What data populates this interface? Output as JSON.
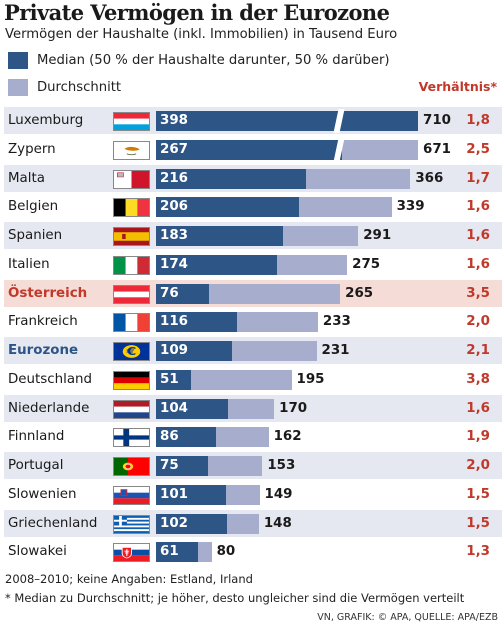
{
  "title": "Private Vermögen in der Eurozone",
  "subtitle": "Vermögen der Haushalte (inkl. Immobilien) in Tausend Euro",
  "colors": {
    "median": "#2d5586",
    "average": "#a7adcc",
    "ratio": "#c0392b",
    "row_light": "#e6e8f1",
    "row_white": "#ffffff",
    "row_highlight": "#f5dcd6",
    "eurozone_text": "#2d5586"
  },
  "legend": {
    "median": "Median (50 % der Haushalte darunter, 50 % darüber)",
    "average": "Durchschnitt",
    "ratio": "Verhältnis*"
  },
  "chart_data": {
    "type": "bar",
    "categories": [
      "Luxemburg",
      "Zypern",
      "Malta",
      "Belgien",
      "Spanien",
      "Italien",
      "Österreich",
      "Frankreich",
      "Eurozone",
      "Deutschland",
      "Niederlande",
      "Finnland",
      "Portugal",
      "Slowenien",
      "Griechenland",
      "Slowakei"
    ],
    "series": [
      {
        "name": "Median (50 % der Haushalte darunter, 50 % darüber)",
        "values": [
          398,
          267,
          216,
          206,
          183,
          174,
          76,
          116,
          109,
          51,
          104,
          86,
          75,
          101,
          102,
          61
        ]
      },
      {
        "name": "Durchschnitt",
        "values": [
          710,
          671,
          366,
          339,
          291,
          275,
          265,
          233,
          231,
          195,
          170,
          162,
          153,
          149,
          148,
          80
        ]
      }
    ],
    "ratios": [
      "1,8",
      "2,5",
      "1,7",
      "1,6",
      "1,6",
      "1,6",
      "3,5",
      "2,0",
      "2,1",
      "3,8",
      "1,6",
      "1,9",
      "2,0",
      "1,5",
      "1,5",
      "1,3"
    ],
    "axis_break_over": 390,
    "highlight_rows": [
      "Österreich"
    ],
    "accent_rows": [
      "Eurozone"
    ],
    "flags": [
      "luxembourg-flag",
      "cyprus-flag",
      "malta-flag",
      "belgium-flag",
      "spain-flag",
      "italy-flag",
      "austria-flag",
      "france-flag",
      "eu-euro-flag",
      "germany-flag",
      "netherlands-flag",
      "finland-flag",
      "portugal-flag",
      "slovenia-flag",
      "greece-flag",
      "slovakia-flag"
    ]
  },
  "notes": {
    "line1": "2008–2010; keine Angaben: Estland, Irland",
    "line2": "* Median zu Durchschnitt; je höher, desto ungleicher sind die Vermögen verteilt"
  },
  "source": "VN, GRAFIK: © APA, QUELLE: APA/EZB"
}
